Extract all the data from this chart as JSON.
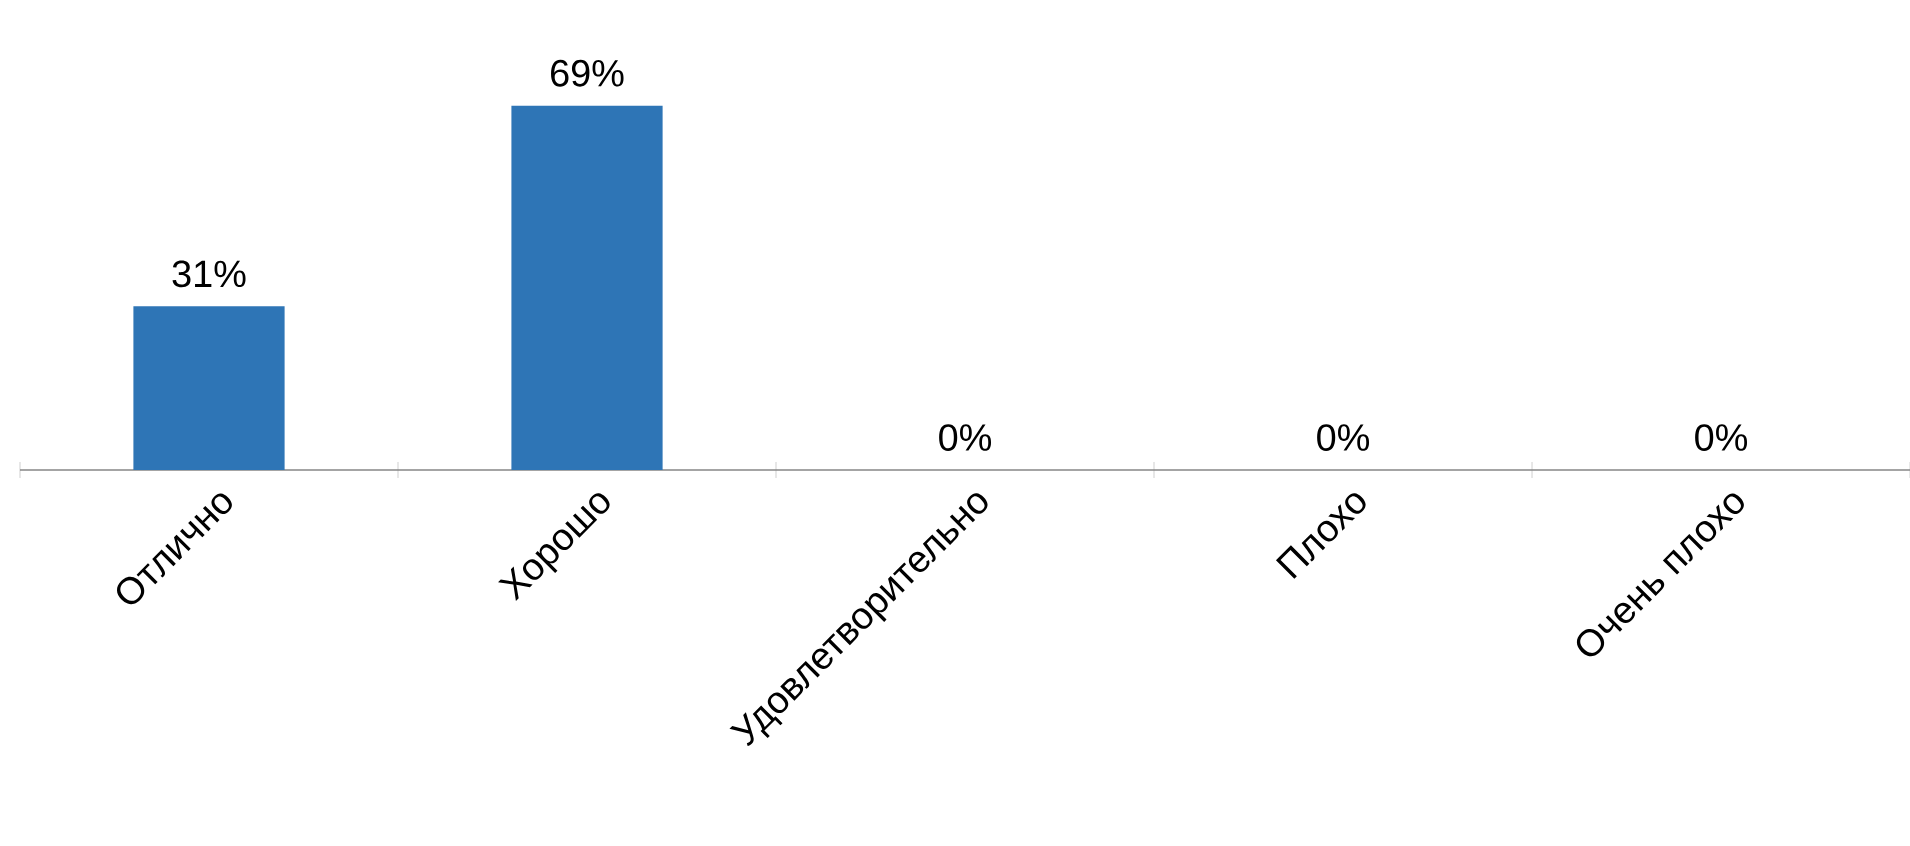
{
  "chart_data": {
    "type": "bar",
    "categories": [
      "Отлично",
      "Хорошо",
      "Удовлетворительно",
      "Плохо",
      "Очень плохо"
    ],
    "values": [
      31,
      69,
      0,
      0,
      0
    ],
    "value_labels": [
      "31%",
      "69%",
      "0%",
      "0%",
      "0%"
    ],
    "color": "#2e75b6"
  }
}
